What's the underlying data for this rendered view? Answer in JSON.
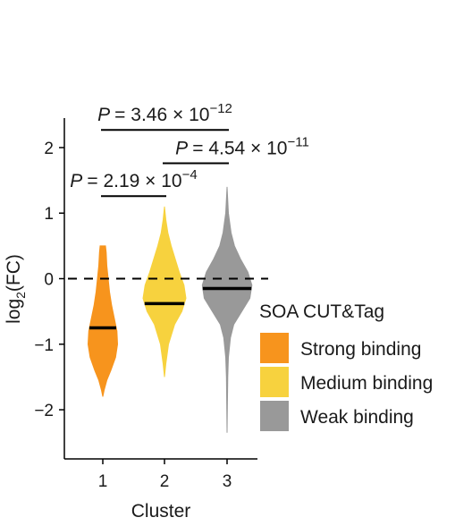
{
  "chart_data": {
    "type": "violin",
    "xlabel": "Cluster",
    "ylabel_main": "log",
    "ylabel_sub": "2",
    "ylabel_tail": "(FC)",
    "categories": [
      "1",
      "2",
      "3"
    ],
    "ylim": [
      -2.75,
      2.45
    ],
    "yticks": [
      -2,
      -1,
      0,
      1,
      2
    ],
    "ytick_labels": [
      "−2",
      "−1",
      "0",
      "1",
      "2"
    ],
    "reference_line": 0,
    "series": [
      {
        "name": "Strong binding",
        "color": "#f7941d",
        "median": -0.75,
        "min": -1.8,
        "max": 0.5,
        "profile": [
          [
            -1.8,
            0.0
          ],
          [
            -1.7,
            0.02
          ],
          [
            -1.55,
            0.06
          ],
          [
            -1.4,
            0.12
          ],
          [
            -1.2,
            0.19
          ],
          [
            -1.0,
            0.22
          ],
          [
            -0.8,
            0.21
          ],
          [
            -0.6,
            0.17
          ],
          [
            -0.4,
            0.13
          ],
          [
            -0.2,
            0.1
          ],
          [
            0.0,
            0.08
          ],
          [
            0.2,
            0.06
          ],
          [
            0.4,
            0.05
          ],
          [
            0.5,
            0.04
          ]
        ]
      },
      {
        "name": "Medium binding",
        "color": "#f7d23e",
        "median": -0.38,
        "min": -1.5,
        "max": 1.1,
        "profile": [
          [
            -1.5,
            0.0
          ],
          [
            -1.3,
            0.02
          ],
          [
            -1.0,
            0.06
          ],
          [
            -0.7,
            0.15
          ],
          [
            -0.5,
            0.26
          ],
          [
            -0.3,
            0.32
          ],
          [
            -0.1,
            0.29
          ],
          [
            0.1,
            0.22
          ],
          [
            0.3,
            0.16
          ],
          [
            0.5,
            0.1
          ],
          [
            0.7,
            0.05
          ],
          [
            0.9,
            0.02
          ],
          [
            1.1,
            0.0
          ]
        ]
      },
      {
        "name": "Weak binding",
        "color": "#999999",
        "median": -0.15,
        "min": -2.35,
        "max": 1.4,
        "profile": [
          [
            -2.35,
            0.0
          ],
          [
            -2.0,
            0.004
          ],
          [
            -1.5,
            0.01
          ],
          [
            -1.2,
            0.02
          ],
          [
            -0.9,
            0.05
          ],
          [
            -0.7,
            0.1
          ],
          [
            -0.5,
            0.22
          ],
          [
            -0.3,
            0.34
          ],
          [
            -0.1,
            0.37
          ],
          [
            0.1,
            0.31
          ],
          [
            0.3,
            0.2
          ],
          [
            0.5,
            0.11
          ],
          [
            0.7,
            0.06
          ],
          [
            1.0,
            0.02
          ],
          [
            1.4,
            0.0
          ]
        ]
      }
    ],
    "comparisons": [
      {
        "from": 1,
        "to": 3,
        "y": 2.27,
        "label_pre": "= 3.46 × 10",
        "label_exp": "−12"
      },
      {
        "from": 2,
        "to": 3,
        "y": 1.76,
        "label_pre": "= 4.54 × 10",
        "label_exp": "−11"
      },
      {
        "from": 1,
        "to": 2,
        "y": 1.26,
        "label_pre": "= 2.19 × 10",
        "label_exp": "−4"
      }
    ],
    "p_symbol": "P",
    "legend": {
      "title": "SOA CUT&Tag",
      "position": "right",
      "items": [
        "Strong binding",
        "Medium binding",
        "Weak binding"
      ]
    }
  }
}
